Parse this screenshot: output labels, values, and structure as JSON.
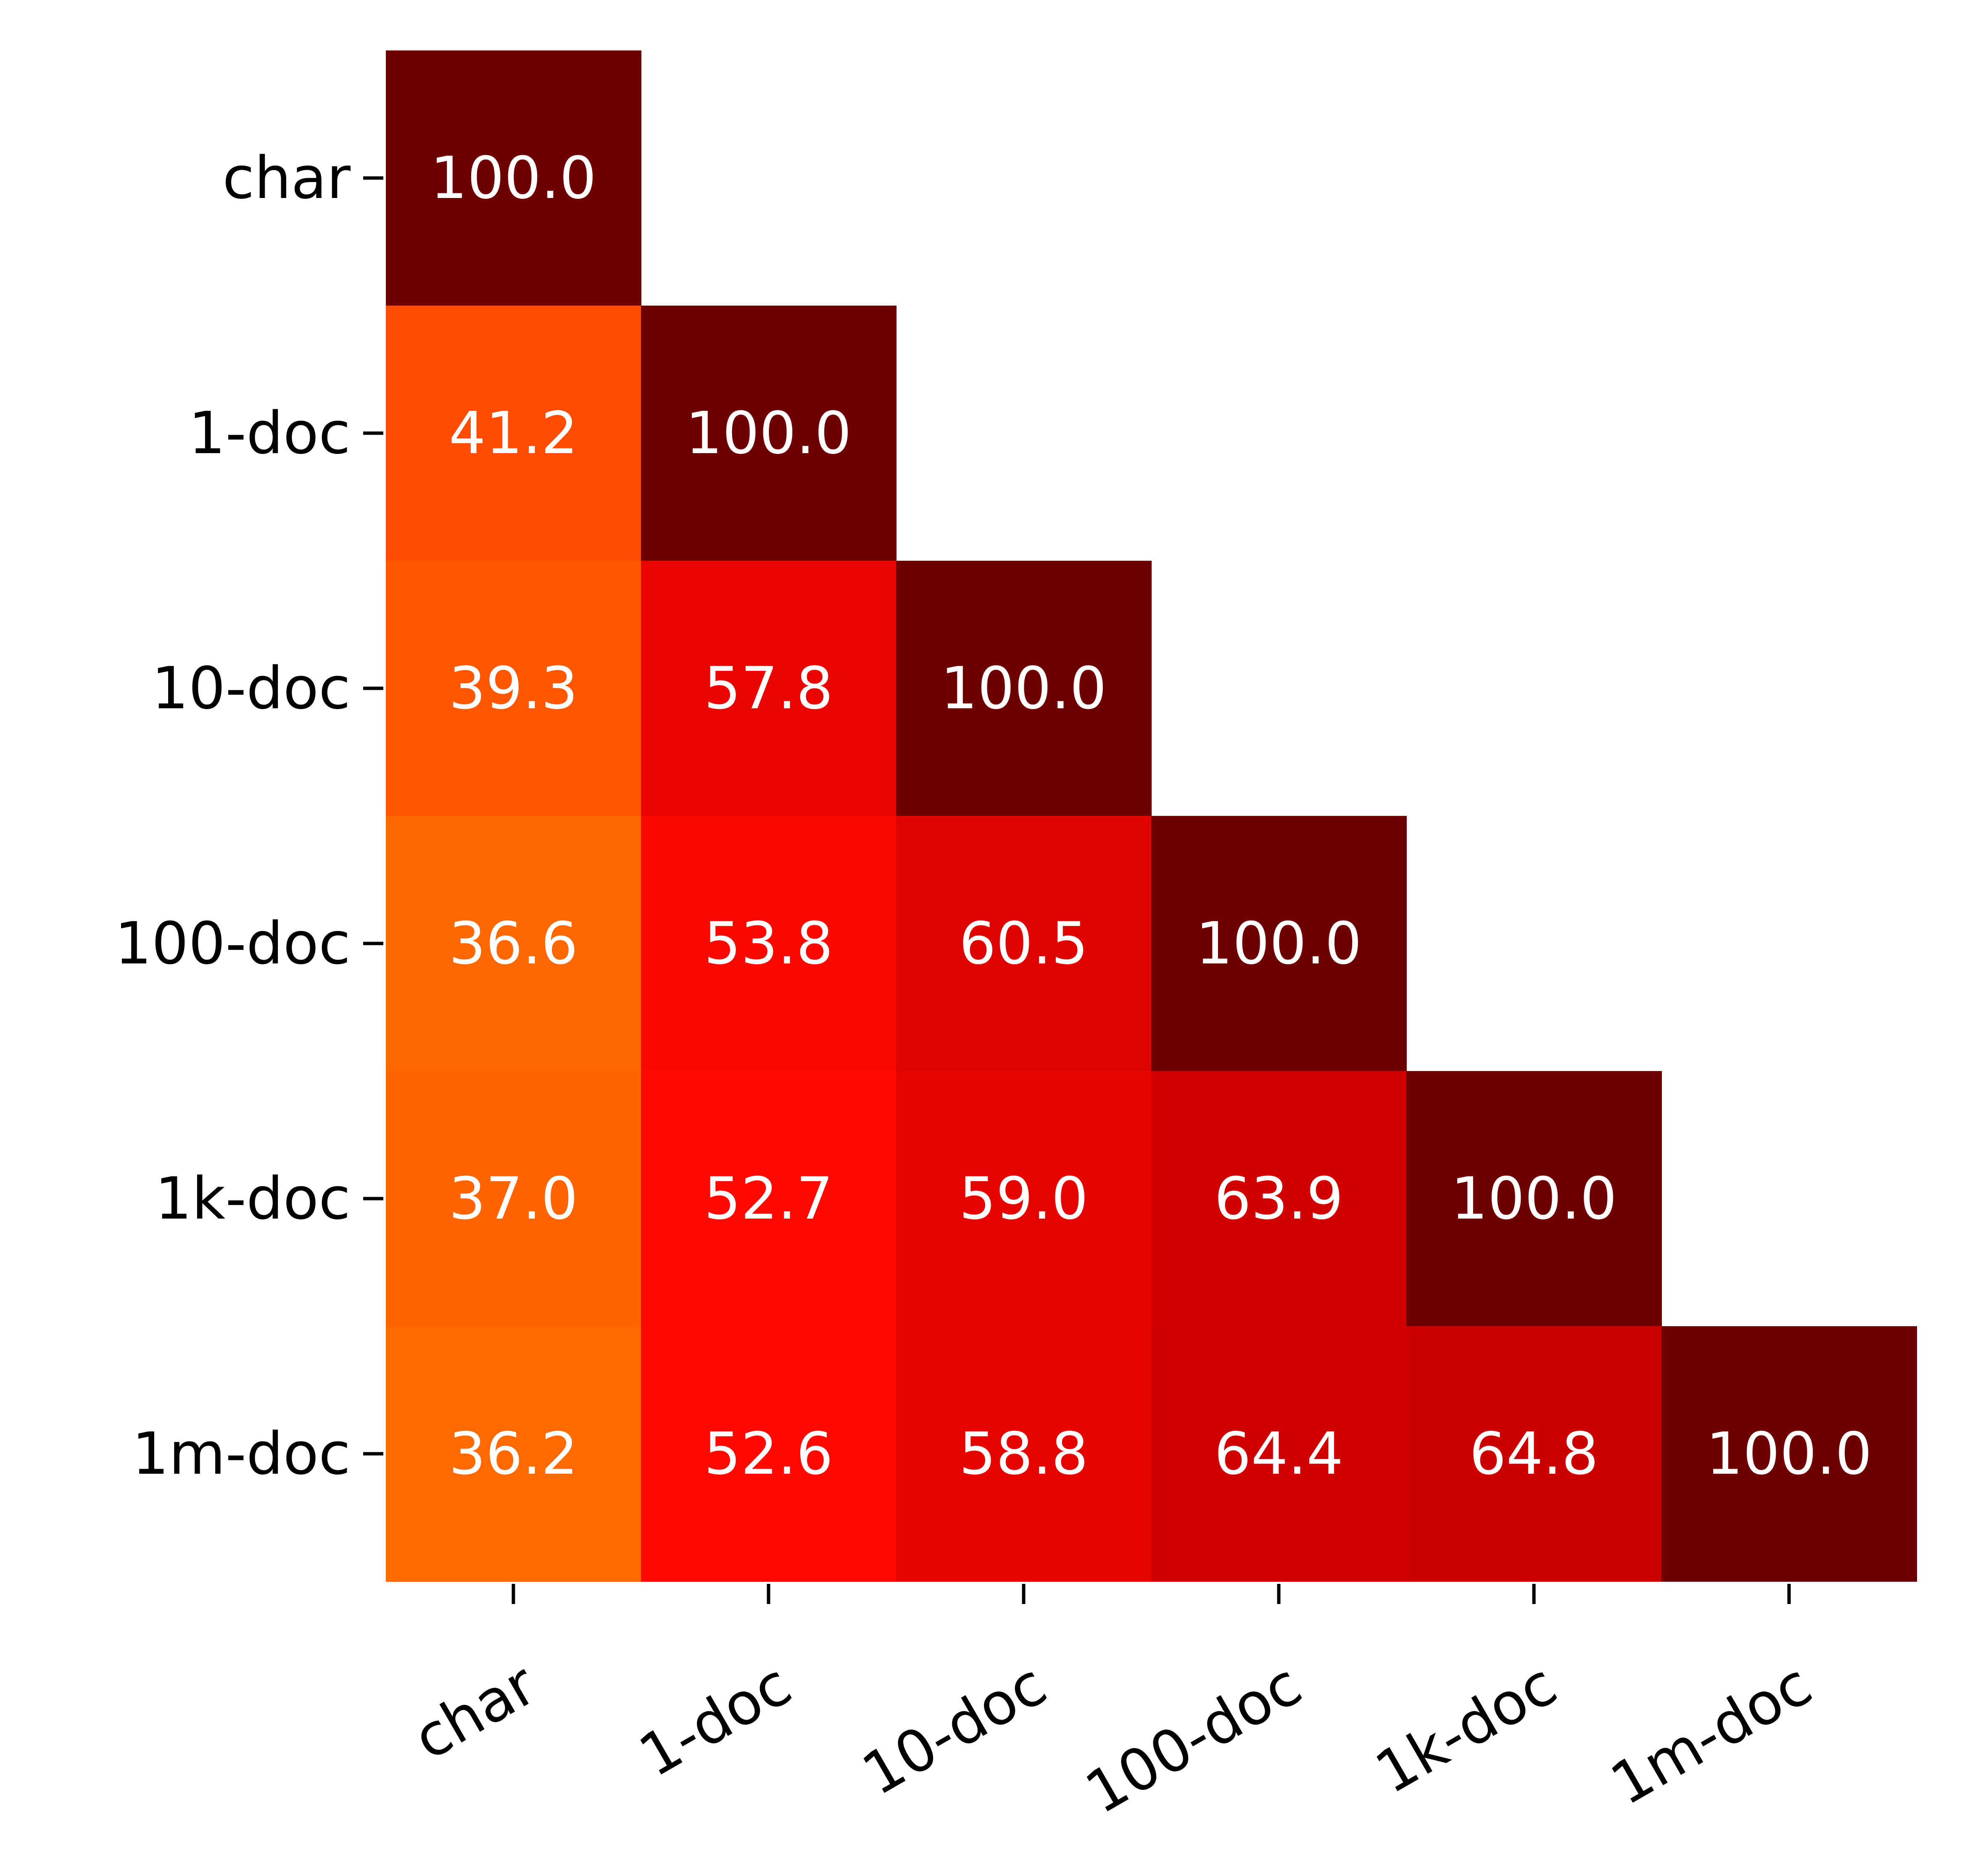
{
  "chart_data": {
    "type": "heatmap",
    "title": "",
    "xlabel": "",
    "ylabel": "",
    "x_categories": [
      "char",
      "1-doc",
      "10-doc",
      "100-doc",
      "1k-doc",
      "1m-doc"
    ],
    "y_categories": [
      "char",
      "1-doc",
      "10-doc",
      "100-doc",
      "1k-doc",
      "1m-doc"
    ],
    "matrix": [
      [
        100.0,
        null,
        null,
        null,
        null,
        null
      ],
      [
        41.2,
        100.0,
        null,
        null,
        null,
        null
      ],
      [
        39.3,
        57.8,
        100.0,
        null,
        null,
        null
      ],
      [
        36.6,
        53.8,
        60.5,
        100.0,
        null,
        null
      ],
      [
        37.0,
        52.7,
        59.0,
        63.9,
        100.0,
        null
      ],
      [
        36.2,
        52.6,
        58.8,
        64.4,
        64.8,
        100.0
      ]
    ],
    "value_format": "one decimal",
    "mask": "upper triangle (above diagonal) blank",
    "colormap": "hot",
    "color_scale": [
      "#ff6a00",
      "#ff0a00",
      "#cc0000",
      "#6e0000"
    ],
    "cell_text_color": "#ffffff",
    "grid": false,
    "legend": "none",
    "x_tick_rotation": "30 degrees counter-clockwise"
  }
}
